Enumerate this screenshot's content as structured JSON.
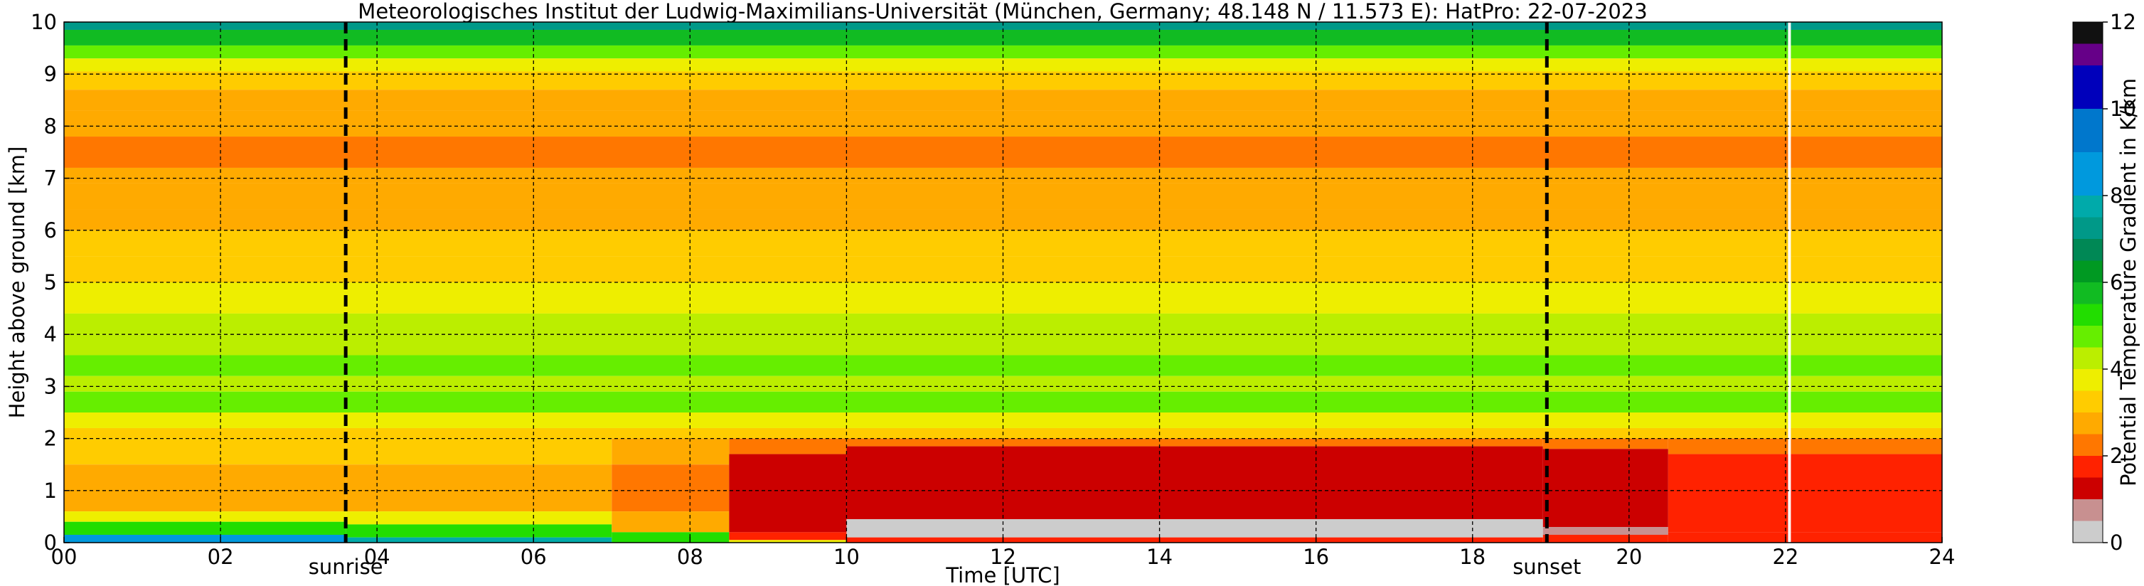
{
  "chart_data": {
    "type": "heatmap",
    "title": "Meteorologisches Institut der Ludwig-Maximilians-Universität (München, Germany; 48.148 N / 11.573 E):    HatPro: 22-07-2023",
    "xlabel": "Time [UTC]",
    "ylabel": "Height above ground [km]",
    "colorbar_label": "Potential Temperature Gradient in K/km",
    "xlim": [
      0,
      24
    ],
    "ylim": [
      0,
      10
    ],
    "x_ticks": [
      {
        "value": 0,
        "label": "00"
      },
      {
        "value": 2,
        "label": "02"
      },
      {
        "value": 4,
        "label": "04"
      },
      {
        "value": 6,
        "label": "06"
      },
      {
        "value": 8,
        "label": "08"
      },
      {
        "value": 10,
        "label": "10"
      },
      {
        "value": 12,
        "label": "12"
      },
      {
        "value": 14,
        "label": "14"
      },
      {
        "value": 16,
        "label": "16"
      },
      {
        "value": 18,
        "label": "18"
      },
      {
        "value": 20,
        "label": "20"
      },
      {
        "value": 22,
        "label": "22"
      },
      {
        "value": 24,
        "label": "24"
      }
    ],
    "y_ticks": [
      {
        "value": 0,
        "label": "0"
      },
      {
        "value": 1,
        "label": "1"
      },
      {
        "value": 2,
        "label": "2"
      },
      {
        "value": 3,
        "label": "3"
      },
      {
        "value": 4,
        "label": "4"
      },
      {
        "value": 5,
        "label": "5"
      },
      {
        "value": 6,
        "label": "6"
      },
      {
        "value": 7,
        "label": "7"
      },
      {
        "value": 8,
        "label": "8"
      },
      {
        "value": 9,
        "label": "9"
      },
      {
        "value": 10,
        "label": "10"
      }
    ],
    "grid": true,
    "markers": [
      {
        "label": "sunrise",
        "time": 3.6
      },
      {
        "label": "sunset",
        "time": 18.95
      }
    ],
    "data_gap_time": 22.05,
    "colorbar": {
      "min": 0,
      "max": 12,
      "ticks": [
        {
          "value": 0,
          "label": "0"
        },
        {
          "value": 2,
          "label": "2"
        },
        {
          "value": 4,
          "label": "4"
        },
        {
          "value": 6,
          "label": "6"
        },
        {
          "value": 8,
          "label": "8"
        },
        {
          "value": 10,
          "label": "10"
        },
        {
          "value": 12,
          "label": "12"
        }
      ],
      "colors": [
        {
          "from": 0.0,
          "to": 0.5,
          "color": "#cccccc"
        },
        {
          "from": 0.5,
          "to": 1.0,
          "color": "#c89090"
        },
        {
          "from": 1.0,
          "to": 1.5,
          "color": "#cc0000"
        },
        {
          "from": 1.5,
          "to": 2.0,
          "color": "#ff2200"
        },
        {
          "from": 2.0,
          "to": 2.5,
          "color": "#ff7700"
        },
        {
          "from": 2.5,
          "to": 3.0,
          "color": "#ffaa00"
        },
        {
          "from": 3.0,
          "to": 3.5,
          "color": "#ffcc00"
        },
        {
          "from": 3.5,
          "to": 4.0,
          "color": "#eeee00"
        },
        {
          "from": 4.0,
          "to": 4.5,
          "color": "#bbee00"
        },
        {
          "from": 4.5,
          "to": 5.0,
          "color": "#66ee00"
        },
        {
          "from": 5.0,
          "to": 5.5,
          "color": "#22dd00"
        },
        {
          "from": 5.5,
          "to": 6.0,
          "color": "#11bb22"
        },
        {
          "from": 6.0,
          "to": 6.5,
          "color": "#009922"
        },
        {
          "from": 6.5,
          "to": 7.0,
          "color": "#008855"
        },
        {
          "from": 7.0,
          "to": 7.5,
          "color": "#009988"
        },
        {
          "from": 7.5,
          "to": 8.0,
          "color": "#00aaaa"
        },
        {
          "from": 8.0,
          "to": 9.0,
          "color": "#0099dd"
        },
        {
          "from": 9.0,
          "to": 10.0,
          "color": "#0077cc"
        },
        {
          "from": 10.0,
          "to": 11.0,
          "color": "#0000bb"
        },
        {
          "from": 11.0,
          "to": 11.5,
          "color": "#660088"
        },
        {
          "from": 11.5,
          "to": 12.0,
          "color": "#111111"
        }
      ]
    },
    "upper_layers": [
      {
        "from": 9.85,
        "to": 10.0,
        "value": 7.0
      },
      {
        "from": 9.55,
        "to": 9.85,
        "value": 5.7
      },
      {
        "from": 9.3,
        "to": 9.55,
        "value": 4.8
      },
      {
        "from": 9.05,
        "to": 9.3,
        "value": 3.7
      },
      {
        "from": 8.7,
        "to": 9.05,
        "value": 3.2
      },
      {
        "from": 8.3,
        "to": 8.7,
        "value": 2.9
      },
      {
        "from": 7.8,
        "to": 8.3,
        "value": 2.6
      },
      {
        "from": 7.2,
        "to": 7.8,
        "value": 2.4
      },
      {
        "from": 6.9,
        "to": 7.2,
        "value": 2.9
      },
      {
        "from": 6.4,
        "to": 6.9,
        "value": 2.6
      },
      {
        "from": 6.0,
        "to": 6.4,
        "value": 2.8
      },
      {
        "from": 5.5,
        "to": 6.0,
        "value": 3.2
      },
      {
        "from": 5.0,
        "to": 5.5,
        "value": 3.4
      },
      {
        "from": 4.4,
        "to": 5.0,
        "value": 3.7
      },
      {
        "from": 4.0,
        "to": 4.4,
        "value": 4.0
      },
      {
        "from": 3.6,
        "to": 4.0,
        "value": 4.3
      },
      {
        "from": 3.2,
        "to": 3.6,
        "value": 4.8
      },
      {
        "from": 2.9,
        "to": 3.2,
        "value": 4.3
      },
      {
        "from": 2.5,
        "to": 2.9,
        "value": 4.7
      },
      {
        "from": 2.2,
        "to": 2.5,
        "value": 3.9
      },
      {
        "from": 2.0,
        "to": 2.2,
        "value": 3.4
      }
    ],
    "boundary_layer": [
      {
        "time_from": 0,
        "time_to": 3.6,
        "layers": [
          {
            "from": 1.5,
            "to": 2.0,
            "value": 3.1
          },
          {
            "from": 0.6,
            "to": 1.5,
            "value": 2.7
          },
          {
            "from": 0.4,
            "to": 0.6,
            "value": 3.8
          },
          {
            "from": 0.15,
            "to": 0.4,
            "value": 5.4
          },
          {
            "from": 0.0,
            "to": 0.15,
            "value": 8.0
          }
        ]
      },
      {
        "time_from": 3.6,
        "time_to": 7.0,
        "layers": [
          {
            "from": 1.5,
            "to": 2.0,
            "value": 3.1
          },
          {
            "from": 0.6,
            "to": 1.5,
            "value": 2.6
          },
          {
            "from": 0.35,
            "to": 0.6,
            "value": 3.6
          },
          {
            "from": 0.1,
            "to": 0.35,
            "value": 5.3
          },
          {
            "from": 0.0,
            "to": 0.1,
            "value": 7.5
          }
        ]
      },
      {
        "time_from": 7.0,
        "time_to": 8.5,
        "layers": [
          {
            "from": 1.5,
            "to": 2.0,
            "value": 2.8
          },
          {
            "from": 0.6,
            "to": 1.5,
            "value": 2.2
          },
          {
            "from": 0.2,
            "to": 0.6,
            "value": 2.6
          },
          {
            "from": 0.0,
            "to": 0.2,
            "value": 5.2
          }
        ]
      },
      {
        "time_from": 8.5,
        "time_to": 10.0,
        "layers": [
          {
            "from": 1.7,
            "to": 2.0,
            "value": 2.4
          },
          {
            "from": 0.2,
            "to": 1.7,
            "value": 1.4
          },
          {
            "from": 0.05,
            "to": 0.2,
            "value": 1.8
          },
          {
            "from": 0.0,
            "to": 0.05,
            "value": 3.8
          }
        ]
      },
      {
        "time_from": 10.0,
        "time_to": 18.9,
        "layers": [
          {
            "from": 1.85,
            "to": 2.0,
            "value": 2.2
          },
          {
            "from": 0.45,
            "to": 1.85,
            "value": 1.3
          },
          {
            "from": 0.1,
            "to": 0.45,
            "value": 0.2
          },
          {
            "from": 0.0,
            "to": 0.1,
            "value": 1.6
          }
        ]
      },
      {
        "time_from": 18.9,
        "time_to": 20.5,
        "layers": [
          {
            "from": 1.8,
            "to": 2.0,
            "value": 2.3
          },
          {
            "from": 0.3,
            "to": 1.8,
            "value": 1.35
          },
          {
            "from": 0.15,
            "to": 0.3,
            "value": 0.7
          },
          {
            "from": 0.0,
            "to": 0.15,
            "value": 1.6
          }
        ]
      },
      {
        "time_from": 20.5,
        "time_to": 24.0,
        "layers": [
          {
            "from": 1.7,
            "to": 2.0,
            "value": 2.4
          },
          {
            "from": 0.2,
            "to": 1.7,
            "value": 1.5
          },
          {
            "from": 0.0,
            "to": 0.2,
            "value": 1.7
          }
        ]
      }
    ]
  }
}
